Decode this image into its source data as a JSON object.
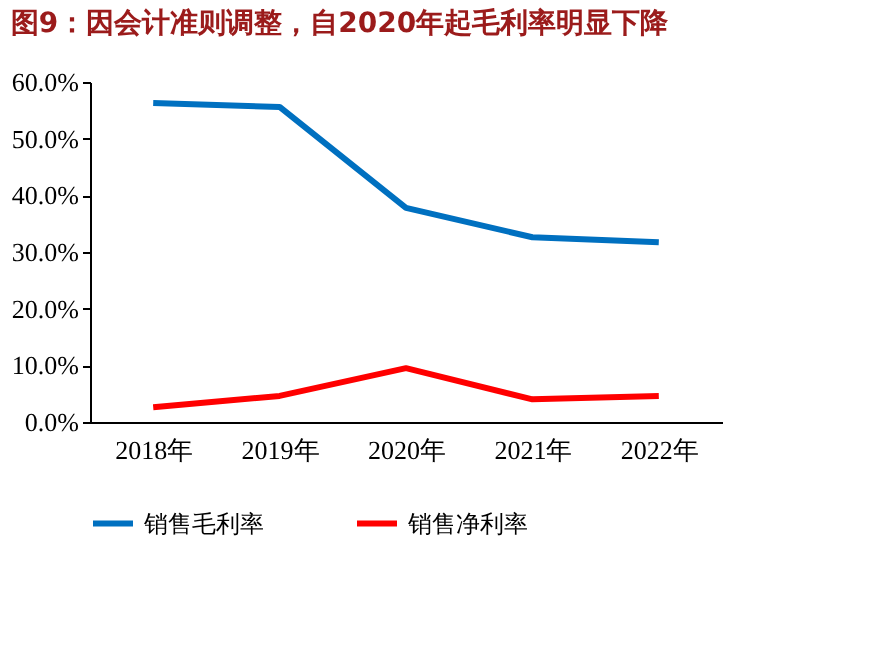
{
  "chart_data": {
    "type": "line",
    "title": "图9：因会计准则调整，自2020年起毛利率明显下降",
    "categories": [
      "2018年",
      "2019年",
      "2020年",
      "2021年",
      "2022年"
    ],
    "series": [
      {
        "name": "销售毛利率",
        "color": "#0070c0",
        "values": [
          56.3,
          55.6,
          37.8,
          32.6,
          31.7
        ]
      },
      {
        "name": "销售净利率",
        "color": "#ff0000",
        "values": [
          2.6,
          4.6,
          9.5,
          4.0,
          4.6
        ]
      }
    ],
    "ylim": [
      0,
      60
    ],
    "yticks": [
      {
        "value": 0,
        "label": "0.0%"
      },
      {
        "value": 10,
        "label": "10.0%"
      },
      {
        "value": 20,
        "label": "20.0%"
      },
      {
        "value": 30,
        "label": "30.0%"
      },
      {
        "value": 40,
        "label": "40.0%"
      },
      {
        "value": 50,
        "label": "50.0%"
      },
      {
        "value": 60,
        "label": "60.0%"
      }
    ],
    "grid": false,
    "legend": "bottom",
    "marker": "none",
    "line_style": "solid"
  }
}
